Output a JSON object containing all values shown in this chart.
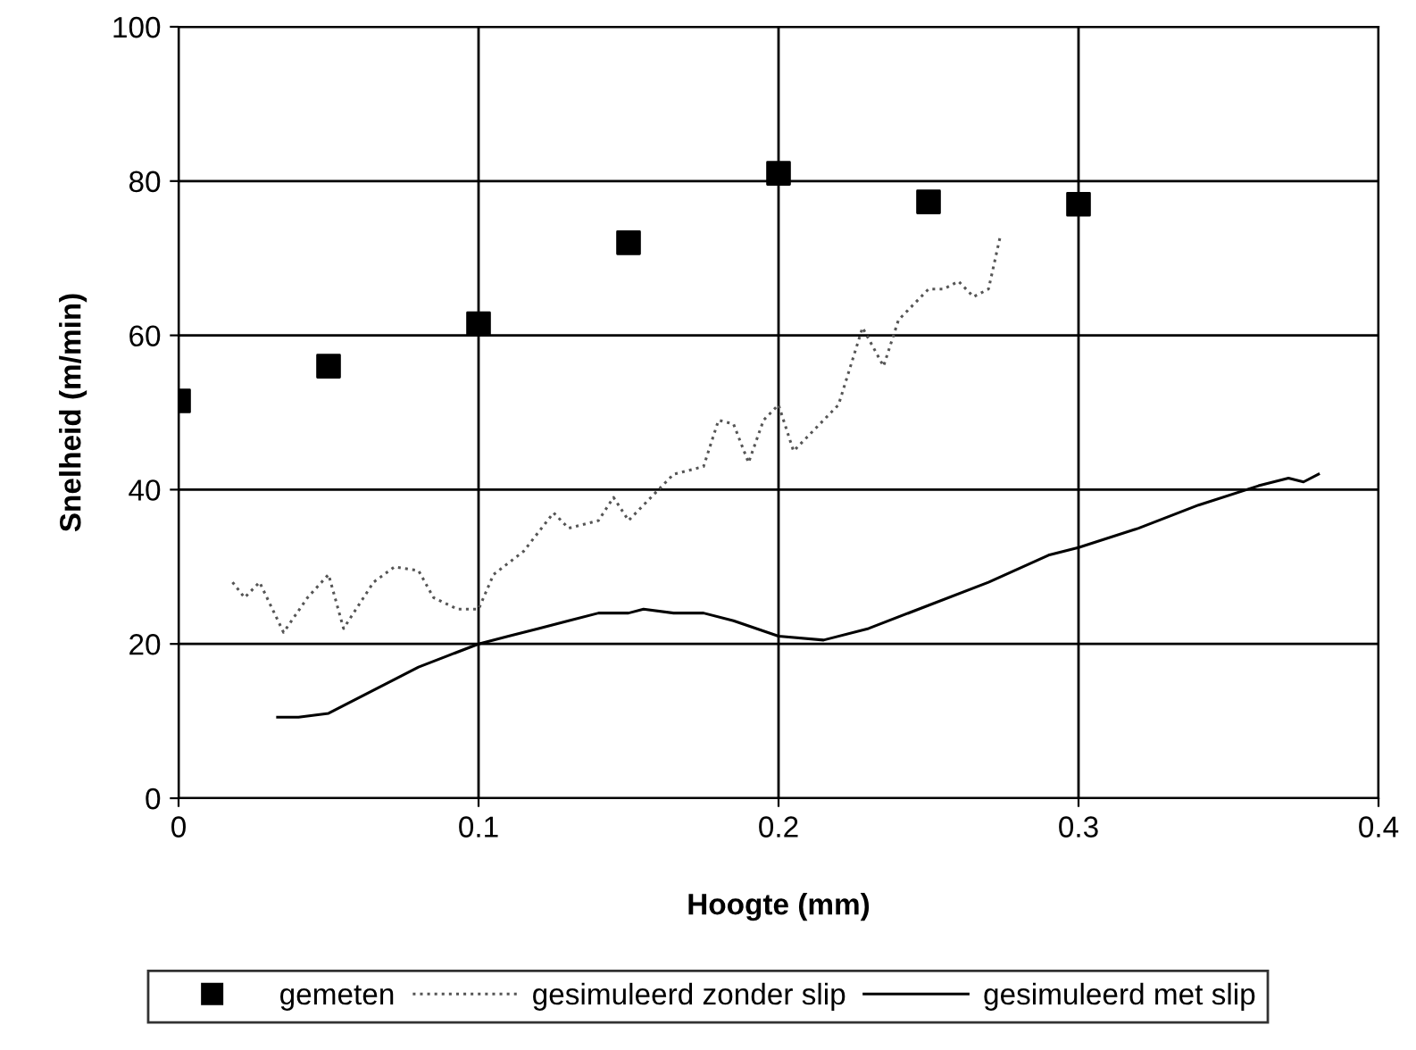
{
  "chart_data": {
    "type": "scatter",
    "xlabel": "Hoogte (mm)",
    "ylabel": "Snelheid (m/min)",
    "xlim": [
      0,
      0.4
    ],
    "xticks": [
      {
        "value": 0,
        "label": "0"
      },
      0.1,
      0.2,
      0.3,
      0.4
    ],
    "ylim": [
      0,
      100
    ],
    "yticks": [
      0,
      20,
      40,
      60,
      80,
      100
    ],
    "grid": true,
    "legend": "bottom",
    "series": [
      {
        "name": "gemeten",
        "marker": "square",
        "color": "#000000",
        "x": [
          0,
          0.05,
          0.1,
          0.15,
          0.2,
          0.25,
          0.3
        ],
        "values": [
          51.5,
          56,
          61.5,
          72,
          81,
          77.3,
          77
        ]
      },
      {
        "name": "gesimuleerd zonder slip",
        "type": "line",
        "line_style": "dotted",
        "color": "#555555",
        "x": [
          0.018,
          0.022,
          0.027,
          0.035,
          0.043,
          0.05,
          0.055,
          0.065,
          0.072,
          0.08,
          0.085,
          0.093,
          0.1,
          0.105,
          0.115,
          0.125,
          0.13,
          0.14,
          0.145,
          0.15,
          0.155,
          0.165,
          0.175,
          0.18,
          0.185,
          0.19,
          0.195,
          0.2,
          0.205,
          0.21,
          0.22,
          0.228,
          0.235,
          0.24,
          0.245,
          0.25,
          0.255,
          0.26,
          0.265,
          0.27,
          0.274
        ],
        "values": [
          28,
          26,
          28,
          21.5,
          26,
          29,
          22,
          28,
          30,
          29.5,
          26,
          24.5,
          24.5,
          29,
          32,
          37,
          35,
          36,
          39,
          36,
          38,
          42,
          43,
          49,
          48.5,
          43.5,
          49,
          51,
          45,
          47,
          51,
          61,
          56,
          62,
          64,
          66,
          66,
          67,
          65,
          66,
          73
        ]
      },
      {
        "name": "gesimuleerd met slip",
        "type": "line",
        "line_style": "solid",
        "color": "#000000",
        "x": [
          0.033,
          0.04,
          0.05,
          0.06,
          0.07,
          0.08,
          0.09,
          0.1,
          0.11,
          0.12,
          0.13,
          0.14,
          0.15,
          0.155,
          0.165,
          0.175,
          0.185,
          0.2,
          0.215,
          0.23,
          0.25,
          0.27,
          0.29,
          0.3,
          0.32,
          0.34,
          0.36,
          0.37,
          0.375,
          0.38
        ],
        "values": [
          10.5,
          10.5,
          11,
          13,
          15,
          17,
          18.5,
          20,
          21,
          22,
          23,
          24,
          24,
          24.5,
          24,
          24,
          23,
          21,
          20.5,
          22,
          25,
          28,
          31.5,
          32.5,
          35,
          38,
          40.5,
          41.5,
          41,
          42
        ]
      }
    ]
  }
}
